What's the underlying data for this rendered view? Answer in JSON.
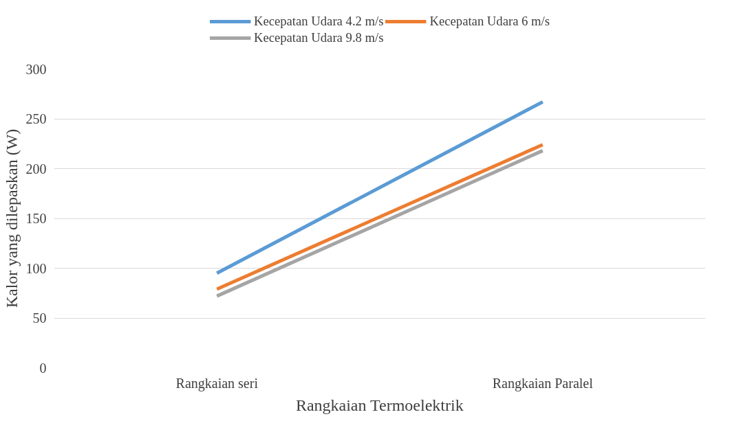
{
  "chart_data": {
    "type": "line",
    "xlabel": "Rangkaian Termoelektrik",
    "ylabel": "Kalor yang dilepaskan (W)",
    "categories": [
      "Rangkaian seri",
      "Rangkaian Paralel"
    ],
    "series": [
      {
        "name": "Kecepatan Udara 4.2 m/s",
        "color": "#5b9bd5",
        "values": [
          95,
          267
        ]
      },
      {
        "name": "Kecepatan Udara 6 m/s",
        "color": "#ed7d31",
        "values": [
          79,
          224
        ]
      },
      {
        "name": "Kecepatan Udara 9.8 m/s",
        "color": "#a5a5a5",
        "values": [
          72,
          218
        ]
      }
    ],
    "ylim": [
      0,
      300
    ],
    "yticks": [
      0,
      50,
      100,
      150,
      200,
      250,
      300
    ],
    "grid": "y",
    "legend": "top",
    "marker": "none"
  }
}
